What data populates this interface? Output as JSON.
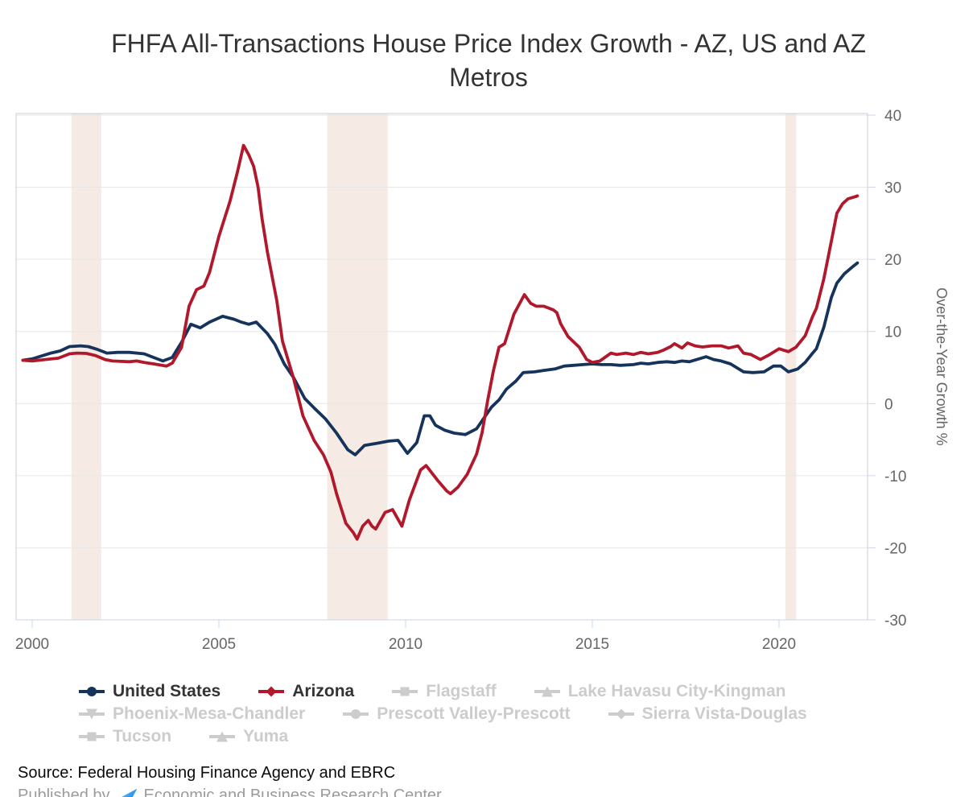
{
  "title": "FHFA All-Transactions House Price Index Growth - AZ, US and AZ Metros",
  "title_lines": [
    "FHFA All-Transactions House Price Index Growth - AZ, US and AZ",
    "Metros"
  ],
  "source_note": "Source: Federal Housing Finance Agency and EBRC",
  "published_by": {
    "prefix": "Published by",
    "publisher": "Economic and Business Research Center"
  },
  "colors": {
    "united_states": "#16335b",
    "arizona": "#b2182b",
    "inactive_legend": "#cccccc",
    "recession_band": "#f5ebe4",
    "plot_border": "#cccccc",
    "gridline": "#e6e6e6",
    "axis_line": "#ccd6eb",
    "tick_label": "#666666",
    "title_text": "#333333"
  },
  "chart_data": {
    "type": "line",
    "title": "FHFA All-Transactions House Price Index Growth - AZ, US and AZ Metros",
    "xlabel": "",
    "ylabel": "Over-the-Year Growth %",
    "x_axis": {
      "min": 1999.57,
      "max": 2022.37,
      "ticks": [
        2000,
        2005,
        2010,
        2015,
        2020
      ]
    },
    "y_axis": {
      "min": -30,
      "max": 40,
      "ticks": [
        40,
        30,
        20,
        10,
        0,
        -10,
        -20,
        -30
      ]
    },
    "grid": "horizontal",
    "legend_position": "bottom-left",
    "recession_bands": [
      [
        2001.05,
        2001.85
      ],
      [
        2007.9,
        2009.52
      ],
      [
        2020.17,
        2020.46
      ]
    ],
    "legend_rows": [
      [
        "United States",
        "Arizona",
        "Flagstaff",
        "Lake Havasu City-Kingman"
      ],
      [
        "Phoenix-Mesa-Chandler",
        "Prescott Valley-Prescott",
        "Sierra Vista-Douglas"
      ],
      [
        "Tucson",
        "Yuma"
      ]
    ],
    "series": [
      {
        "name": "United States",
        "color": "#16335b",
        "marker": "circle",
        "active": true,
        "points": [
          [
            1999.75,
            6.0
          ],
          [
            2000,
            6.2
          ],
          [
            2000.25,
            6.6
          ],
          [
            2000.5,
            7.0
          ],
          [
            2000.75,
            7.3
          ],
          [
            2001,
            7.9
          ],
          [
            2001.3,
            8.0
          ],
          [
            2001.5,
            7.9
          ],
          [
            2001.75,
            7.5
          ],
          [
            2002,
            7.0
          ],
          [
            2002.3,
            7.1
          ],
          [
            2002.6,
            7.1
          ],
          [
            2003,
            6.9
          ],
          [
            2003.25,
            6.4
          ],
          [
            2003.5,
            5.9
          ],
          [
            2003.75,
            6.4
          ],
          [
            2004,
            8.5
          ],
          [
            2004.25,
            11.0
          ],
          [
            2004.5,
            10.5
          ],
          [
            2004.75,
            11.3
          ],
          [
            2005.1,
            12.1
          ],
          [
            2005.4,
            11.7
          ],
          [
            2005.6,
            11.3
          ],
          [
            2005.8,
            11.0
          ],
          [
            2006,
            11.3
          ],
          [
            2006.3,
            9.7
          ],
          [
            2006.5,
            8.2
          ],
          [
            2006.75,
            5.5
          ],
          [
            2007,
            3.6
          ],
          [
            2007.3,
            0.7
          ],
          [
            2007.55,
            -0.6
          ],
          [
            2007.85,
            -2.1
          ],
          [
            2008.15,
            -4.1
          ],
          [
            2008.45,
            -6.4
          ],
          [
            2008.65,
            -7.1
          ],
          [
            2008.9,
            -5.8
          ],
          [
            2009.25,
            -5.5
          ],
          [
            2009.55,
            -5.2
          ],
          [
            2009.8,
            -5.1
          ],
          [
            2010.05,
            -6.9
          ],
          [
            2010.3,
            -5.4
          ],
          [
            2010.5,
            -1.7
          ],
          [
            2010.65,
            -1.7
          ],
          [
            2010.8,
            -3.0
          ],
          [
            2011.05,
            -3.7
          ],
          [
            2011.3,
            -4.1
          ],
          [
            2011.6,
            -4.3
          ],
          [
            2011.9,
            -3.5
          ],
          [
            2012.1,
            -2.0
          ],
          [
            2012.3,
            -0.5
          ],
          [
            2012.5,
            0.5
          ],
          [
            2012.7,
            2.0
          ],
          [
            2012.95,
            3.1
          ],
          [
            2013.15,
            4.3
          ],
          [
            2013.45,
            4.4
          ],
          [
            2013.7,
            4.6
          ],
          [
            2014,
            4.8
          ],
          [
            2014.25,
            5.2
          ],
          [
            2014.5,
            5.3
          ],
          [
            2014.75,
            5.4
          ],
          [
            2015,
            5.5
          ],
          [
            2015.25,
            5.4
          ],
          [
            2015.5,
            5.4
          ],
          [
            2015.75,
            5.3
          ],
          [
            2016.1,
            5.4
          ],
          [
            2016.3,
            5.6
          ],
          [
            2016.5,
            5.5
          ],
          [
            2016.75,
            5.7
          ],
          [
            2017,
            5.8
          ],
          [
            2017.2,
            5.7
          ],
          [
            2017.4,
            5.9
          ],
          [
            2017.6,
            5.8
          ],
          [
            2017.8,
            6.1
          ],
          [
            2018.05,
            6.5
          ],
          [
            2018.25,
            6.1
          ],
          [
            2018.45,
            5.9
          ],
          [
            2018.7,
            5.5
          ],
          [
            2019.05,
            4.4
          ],
          [
            2019.3,
            4.3
          ],
          [
            2019.6,
            4.4
          ],
          [
            2019.85,
            5.2
          ],
          [
            2020.05,
            5.2
          ],
          [
            2020.25,
            4.4
          ],
          [
            2020.5,
            4.8
          ],
          [
            2020.7,
            5.7
          ],
          [
            2020.9,
            7.0
          ],
          [
            2021,
            7.6
          ],
          [
            2021.2,
            10.6
          ],
          [
            2021.4,
            14.7
          ],
          [
            2021.55,
            16.7
          ],
          [
            2021.75,
            18.0
          ],
          [
            2022,
            19.1
          ],
          [
            2022.1,
            19.5
          ]
        ]
      },
      {
        "name": "Arizona",
        "color": "#b2182b",
        "marker": "diamond",
        "active": true,
        "points": [
          [
            1999.75,
            6.0
          ],
          [
            2000,
            5.9
          ],
          [
            2000.35,
            6.1
          ],
          [
            2000.7,
            6.3
          ],
          [
            2001,
            6.9
          ],
          [
            2001.2,
            7.0
          ],
          [
            2001.45,
            6.95
          ],
          [
            2001.7,
            6.65
          ],
          [
            2001.95,
            6.1
          ],
          [
            2002.15,
            5.9
          ],
          [
            2002.6,
            5.8
          ],
          [
            2002.8,
            5.9
          ],
          [
            2003,
            5.7
          ],
          [
            2003.25,
            5.5
          ],
          [
            2003.6,
            5.2
          ],
          [
            2003.75,
            5.6
          ],
          [
            2004,
            7.8
          ],
          [
            2004.2,
            13.5
          ],
          [
            2004.4,
            15.8
          ],
          [
            2004.6,
            16.3
          ],
          [
            2004.75,
            18.2
          ],
          [
            2005,
            23.2
          ],
          [
            2005.3,
            28.1
          ],
          [
            2005.5,
            32.2
          ],
          [
            2005.66,
            35.8
          ],
          [
            2005.8,
            34.5
          ],
          [
            2005.93,
            32.9
          ],
          [
            2006.05,
            30.0
          ],
          [
            2006.15,
            25.8
          ],
          [
            2006.3,
            21.0
          ],
          [
            2006.55,
            14.3
          ],
          [
            2006.7,
            8.7
          ],
          [
            2007,
            3.5
          ],
          [
            2007.25,
            -1.7
          ],
          [
            2007.55,
            -5.1
          ],
          [
            2007.8,
            -7.1
          ],
          [
            2008,
            -9.5
          ],
          [
            2008.15,
            -12.5
          ],
          [
            2008.4,
            -16.6
          ],
          [
            2008.6,
            -17.9
          ],
          [
            2008.7,
            -18.8
          ],
          [
            2008.85,
            -17.0
          ],
          [
            2009,
            -16.2
          ],
          [
            2009.1,
            -17.0
          ],
          [
            2009.2,
            -17.4
          ],
          [
            2009.45,
            -15.1
          ],
          [
            2009.65,
            -14.7
          ],
          [
            2009.9,
            -17.0
          ],
          [
            2010.1,
            -13.4
          ],
          [
            2010.4,
            -9.2
          ],
          [
            2010.55,
            -8.6
          ],
          [
            2010.85,
            -10.6
          ],
          [
            2011.1,
            -12.1
          ],
          [
            2011.2,
            -12.5
          ],
          [
            2011.4,
            -11.6
          ],
          [
            2011.65,
            -9.8
          ],
          [
            2011.9,
            -7.0
          ],
          [
            2012.05,
            -4.0
          ],
          [
            2012.2,
            0.5
          ],
          [
            2012.35,
            4.5
          ],
          [
            2012.5,
            7.8
          ],
          [
            2012.65,
            8.3
          ],
          [
            2012.9,
            12.4
          ],
          [
            2013.18,
            15.1
          ],
          [
            2013.35,
            13.9
          ],
          [
            2013.5,
            13.5
          ],
          [
            2013.7,
            13.5
          ],
          [
            2013.95,
            13.0
          ],
          [
            2014.05,
            12.6
          ],
          [
            2014.15,
            11.1
          ],
          [
            2014.35,
            9.3
          ],
          [
            2014.65,
            7.8
          ],
          [
            2014.85,
            6.1
          ],
          [
            2015,
            5.7
          ],
          [
            2015.2,
            5.9
          ],
          [
            2015.5,
            7.0
          ],
          [
            2015.65,
            6.8
          ],
          [
            2015.9,
            7.0
          ],
          [
            2016.1,
            6.8
          ],
          [
            2016.3,
            7.1
          ],
          [
            2016.5,
            6.9
          ],
          [
            2016.75,
            7.1
          ],
          [
            2016.9,
            7.4
          ],
          [
            2017.1,
            7.9
          ],
          [
            2017.2,
            8.3
          ],
          [
            2017.4,
            7.7
          ],
          [
            2017.55,
            8.4
          ],
          [
            2017.75,
            8.0
          ],
          [
            2017.95,
            7.85
          ],
          [
            2018.2,
            8.0
          ],
          [
            2018.45,
            8.0
          ],
          [
            2018.65,
            7.7
          ],
          [
            2018.9,
            8.0
          ],
          [
            2019.05,
            7.0
          ],
          [
            2019.25,
            6.8
          ],
          [
            2019.5,
            6.1
          ],
          [
            2019.75,
            6.8
          ],
          [
            2020,
            7.6
          ],
          [
            2020.25,
            7.2
          ],
          [
            2020.45,
            7.8
          ],
          [
            2020.7,
            9.4
          ],
          [
            2020.9,
            12.1
          ],
          [
            2021,
            13.2
          ],
          [
            2021.2,
            17.3
          ],
          [
            2021.4,
            22.5
          ],
          [
            2021.55,
            26.4
          ],
          [
            2021.7,
            27.7
          ],
          [
            2021.85,
            28.4
          ],
          [
            2022.05,
            28.7
          ],
          [
            2022.1,
            28.8
          ]
        ]
      },
      {
        "name": "Flagstaff",
        "color": "#cccccc",
        "marker": "square",
        "active": false,
        "points": []
      },
      {
        "name": "Lake Havasu City-Kingman",
        "color": "#cccccc",
        "marker": "triangle",
        "active": false,
        "points": []
      },
      {
        "name": "Phoenix-Mesa-Chandler",
        "color": "#cccccc",
        "marker": "triangle-down",
        "active": false,
        "points": []
      },
      {
        "name": "Prescott Valley-Prescott",
        "color": "#cccccc",
        "marker": "circle",
        "active": false,
        "points": []
      },
      {
        "name": "Sierra Vista-Douglas",
        "color": "#cccccc",
        "marker": "diamond",
        "active": false,
        "points": []
      },
      {
        "name": "Tucson",
        "color": "#cccccc",
        "marker": "square",
        "active": false,
        "points": []
      },
      {
        "name": "Yuma",
        "color": "#cccccc",
        "marker": "triangle",
        "active": false,
        "points": []
      }
    ]
  }
}
